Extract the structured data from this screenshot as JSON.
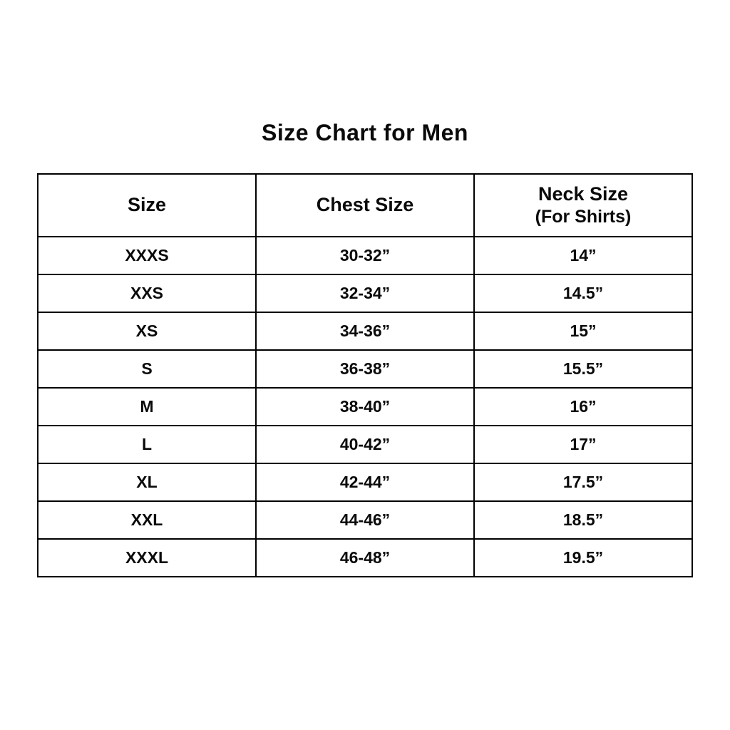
{
  "page": {
    "title": "Size Chart for Men"
  },
  "colors": {
    "background": "#ffffff",
    "text": "#0a0a0a",
    "border": "#000000"
  },
  "table": {
    "columns": [
      {
        "label": "Size",
        "sublabel": ""
      },
      {
        "label": "Chest Size",
        "sublabel": ""
      },
      {
        "label": "Neck Size",
        "sublabel": "(For Shirts)"
      }
    ],
    "rows": [
      {
        "size": "XXXS",
        "chest": "30-32”",
        "neck": "14”"
      },
      {
        "size": "XXS",
        "chest": "32-34”",
        "neck": "14.5”"
      },
      {
        "size": "XS",
        "chest": "34-36”",
        "neck": "15”"
      },
      {
        "size": "S",
        "chest": "36-38”",
        "neck": "15.5”"
      },
      {
        "size": "M",
        "chest": "38-40”",
        "neck": "16”"
      },
      {
        "size": "L",
        "chest": "40-42”",
        "neck": "17”"
      },
      {
        "size": "XL",
        "chest": "42-44”",
        "neck": "17.5”"
      },
      {
        "size": "XXL",
        "chest": "44-46”",
        "neck": "18.5”"
      },
      {
        "size": "XXXL",
        "chest": "46-48”",
        "neck": "19.5”"
      }
    ]
  }
}
